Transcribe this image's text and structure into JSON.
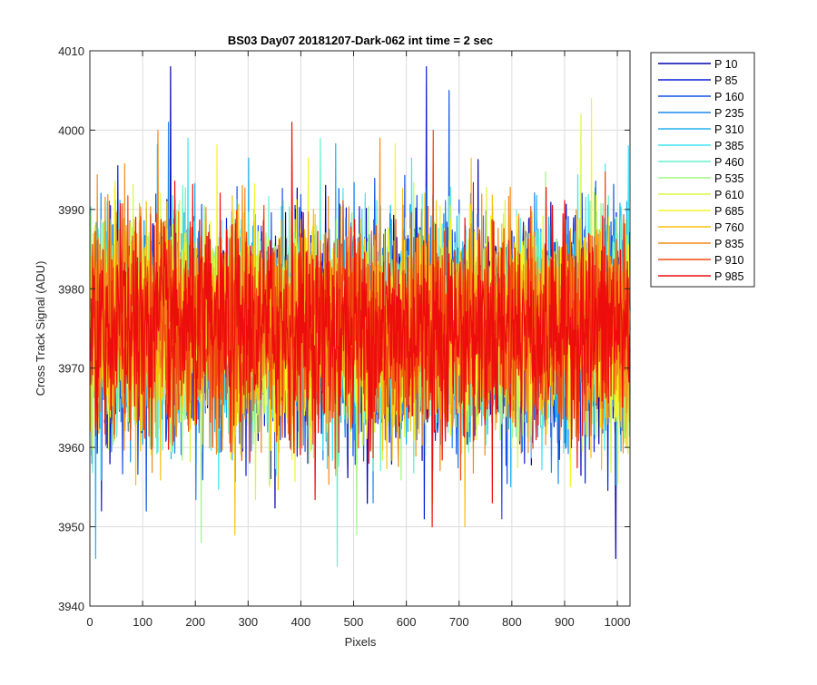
{
  "chart_data": {
    "type": "line",
    "title": "BS03 Day07 20181207-Dark-062 int time = 2 sec",
    "xlabel": "Pixels",
    "ylabel": "Cross Track Signal (ADU)",
    "xlim": [
      0,
      1024
    ],
    "ylim": [
      3940,
      4010
    ],
    "xticks": [
      0,
      100,
      200,
      300,
      400,
      500,
      600,
      700,
      800,
      900,
      1000
    ],
    "yticks": [
      3940,
      3950,
      3960,
      3970,
      3980,
      3990,
      4000,
      4010
    ],
    "grid": true,
    "legend_position": "outside-top-right",
    "n_points": 1024,
    "noise_model": {
      "mean": 3975,
      "std": 6.5
    },
    "series": [
      {
        "name": "P 10",
        "color": "#0000ad",
        "spikes": [
          [
            152,
            4008
          ],
          [
            996,
            3946
          ]
        ]
      },
      {
        "name": "P 85",
        "color": "#0a1fd6",
        "spikes": [
          [
            637,
            4008
          ],
          [
            633,
            3951
          ]
        ]
      },
      {
        "name": "P 160",
        "color": "#1550e8",
        "spikes": [
          [
            680,
            4005
          ],
          [
            780,
            3951
          ]
        ]
      },
      {
        "name": "P 235",
        "color": "#1e86ee",
        "spikes": [
          [
            148,
            4001
          ]
        ]
      },
      {
        "name": "P 310",
        "color": "#22b2f0",
        "spikes": [
          [
            10,
            3946
          ]
        ]
      },
      {
        "name": "P 385",
        "color": "#3ee6f2",
        "spikes": [
          [
            185,
            3999
          ],
          [
            1020,
            3998
          ]
        ]
      },
      {
        "name": "P 460",
        "color": "#66f0cc",
        "spikes": [
          [
            468,
            3945
          ]
        ]
      },
      {
        "name": "P 535",
        "color": "#a0f580",
        "spikes": [
          [
            210,
            3948
          ],
          [
            505,
            3949
          ]
        ]
      },
      {
        "name": "P 610",
        "color": "#d8f83e",
        "spikes": [
          [
            930,
            4002
          ]
        ]
      },
      {
        "name": "P 685",
        "color": "#f6f526",
        "spikes": [
          [
            950,
            4004
          ],
          [
            340,
            3955
          ]
        ]
      },
      {
        "name": "P 760",
        "color": "#f5c20e",
        "spikes": [
          [
            274,
            3949
          ],
          [
            710,
            3950
          ]
        ]
      },
      {
        "name": "P 835",
        "color": "#f28c1a",
        "spikes": [
          [
            128,
            4000
          ]
        ]
      },
      {
        "name": "P 910",
        "color": "#f04a10",
        "spikes": [
          [
            650,
            4000
          ]
        ]
      },
      {
        "name": "P 985",
        "color": "#ee0d0d",
        "spikes": [
          [
            382,
            4001
          ],
          [
            648,
            3950
          ]
        ]
      }
    ]
  }
}
